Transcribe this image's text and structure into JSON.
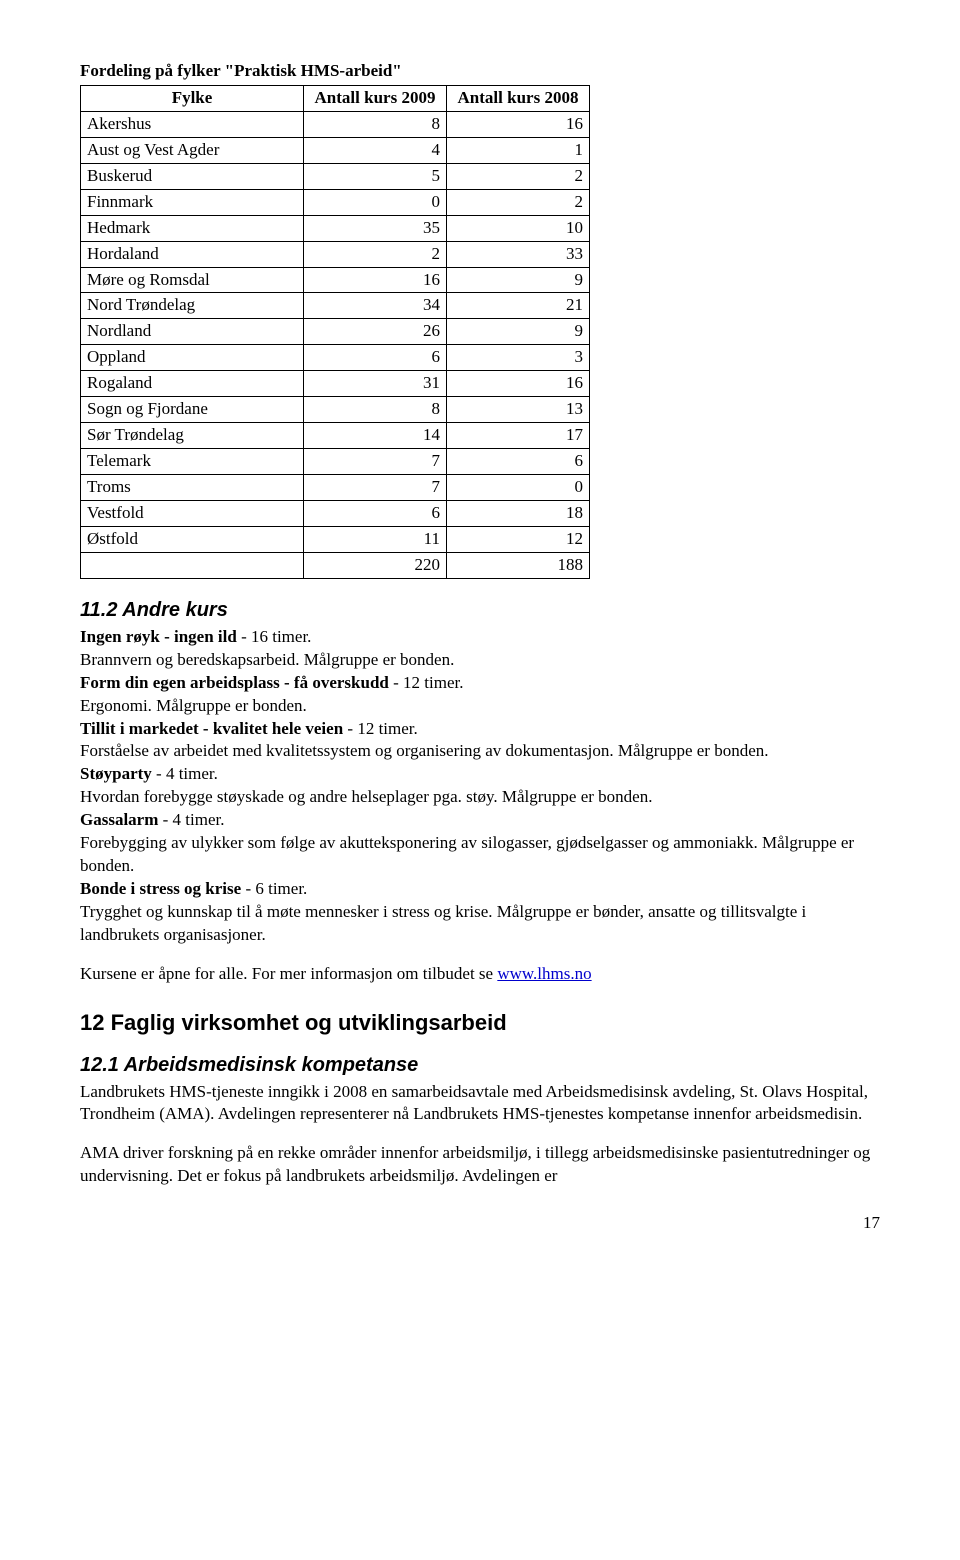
{
  "tableTitle": "Fordeling på fylker \"Praktisk HMS-arbeid\"",
  "table": {
    "headers": [
      "Fylke",
      "Antall kurs 2009",
      "Antall kurs 2008"
    ],
    "rows": [
      [
        "Akershus",
        "8",
        "16"
      ],
      [
        "Aust og Vest Agder",
        "4",
        "1"
      ],
      [
        "Buskerud",
        "5",
        "2"
      ],
      [
        "Finnmark",
        "0",
        "2"
      ],
      [
        "Hedmark",
        "35",
        "10"
      ],
      [
        "Hordaland",
        "2",
        "33"
      ],
      [
        "Møre og Romsdal",
        "16",
        "9"
      ],
      [
        "Nord Trøndelag",
        "34",
        "21"
      ],
      [
        "Nordland",
        "26",
        "9"
      ],
      [
        "Oppland",
        "6",
        "3"
      ],
      [
        "Rogaland",
        "31",
        "16"
      ],
      [
        "Sogn og Fjordane",
        "8",
        "13"
      ],
      [
        "Sør Trøndelag",
        "14",
        "17"
      ],
      [
        "Telemark",
        "7",
        "6"
      ],
      [
        "Troms",
        "7",
        "0"
      ],
      [
        "Vestfold",
        "6",
        "18"
      ],
      [
        "Østfold",
        "11",
        "12"
      ],
      [
        "",
        "220",
        "188"
      ]
    ]
  },
  "sec112": {
    "heading": "11.2 Andre kurs",
    "items": [
      {
        "bold": "Ingen røyk - ingen ild",
        "boldSuffix": " - 16 timer.",
        "text": "Brannvern og beredskapsarbeid. Målgruppe er bonden."
      },
      {
        "bold": "Form din egen arbeidsplass - få overskudd",
        "boldSuffix": " - 12 timer.",
        "text": "Ergonomi. Målgruppe er bonden."
      },
      {
        "bold": "Tillit i markedet - kvalitet hele veien",
        "boldSuffix": " - 12 timer.",
        "text": "Forståelse av arbeidet med kvalitetssystem og organisering av dokumentasjon. Målgruppe er bonden."
      },
      {
        "bold": "Støyparty",
        "boldSuffix": " - 4 timer.",
        "text": "Hvordan forebygge støyskade og andre helseplager pga. støy. Målgruppe er bonden."
      },
      {
        "bold": "Gassalarm",
        "boldSuffix": " - 4 timer.",
        "text": "Forebygging av ulykker som følge av akutteksponering av silogasser, gjødselgasser og ammoniakk. Målgruppe er bonden."
      },
      {
        "bold": "Bonde i stress og krise",
        "boldSuffix": " - 6 timer.",
        "text": "Trygghet og kunnskap til å møte mennesker i stress og krise. Målgruppe er bønder, ansatte og tillitsvalgte i landbrukets organisasjoner."
      }
    ],
    "closingPre": "Kursene er åpne for alle. For mer informasjon om tilbudet se ",
    "closingLink": "www.lhms.no"
  },
  "sec12": {
    "heading": "12  Faglig virksomhet og utviklingsarbeid"
  },
  "sec121": {
    "heading": "12.1 Arbeidsmedisinsk kompetanse",
    "para1": "Landbrukets HMS-tjeneste inngikk i 2008 en samarbeidsavtale med Arbeidsmedisinsk avdeling, St. Olavs Hospital, Trondheim (AMA). Avdelingen representerer nå Landbrukets HMS-tjenestes kompetanse innenfor arbeidsmedisin.",
    "para2": "AMA driver forskning på en rekke områder innenfor arbeidsmiljø, i tillegg arbeidsmedisinske pasientutredninger og undervisning. Det er fokus på landbrukets arbeidsmiljø. Avdelingen er"
  },
  "pageNumber": "17"
}
